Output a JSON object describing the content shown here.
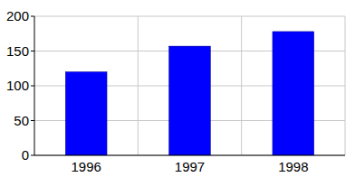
{
  "chart_data": {
    "type": "bar",
    "categories": [
      "1996",
      "1997",
      "1998"
    ],
    "values": [
      120,
      157,
      178
    ],
    "color": "#0000ff",
    "ylim": [
      0,
      200
    ],
    "yticks": [
      0,
      50,
      100,
      150,
      200
    ],
    "grid": true
  }
}
